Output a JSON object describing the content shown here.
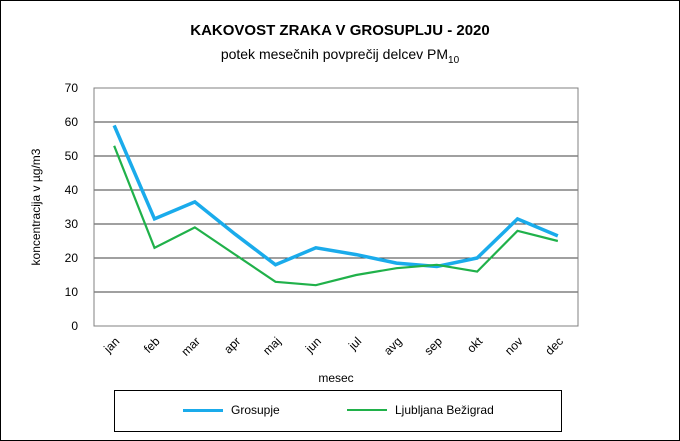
{
  "chart_data": {
    "type": "line",
    "title": "KAKOVOST ZRAKA V GROSUPLJU - 2020",
    "subtitle_main": "potek mesečnih povprečij delcev PM",
    "subtitle_sub": "10",
    "xlabel": "mesec",
    "ylabel": "koncentracija v µg/m3",
    "ylim": [
      0,
      70
    ],
    "yticks": [
      "0",
      "10",
      "20",
      "30",
      "40",
      "50",
      "60",
      "70"
    ],
    "categories": [
      "jan",
      "feb",
      "mar",
      "apr",
      "maj",
      "jun",
      "jul",
      "avg",
      "sep",
      "okt",
      "nov",
      "dec"
    ],
    "series": [
      {
        "name": "Grosupje",
        "color": "#1aabeb",
        "values": [
          59,
          31.5,
          36.5,
          27,
          18,
          23,
          21,
          18.5,
          17.5,
          20,
          31.5,
          26.5
        ]
      },
      {
        "name": "Ljubljana Bežigrad",
        "color": "#20b14a",
        "values": [
          53,
          23,
          29,
          21,
          13,
          12,
          15,
          17,
          18,
          16,
          28,
          25
        ]
      }
    ],
    "grid": "horizontal",
    "legend_position": "bottom"
  }
}
